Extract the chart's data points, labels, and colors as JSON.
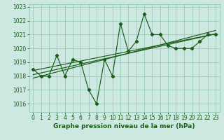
{
  "background_color": "#cce8e0",
  "grid_color": "#99ccbb",
  "line_color": "#1a5c1a",
  "xlim": [
    -0.5,
    23.5
  ],
  "ylim": [
    1015.4,
    1023.2
  ],
  "yticks": [
    1016,
    1017,
    1018,
    1019,
    1020,
    1021,
    1022,
    1023
  ],
  "xticks": [
    0,
    1,
    2,
    3,
    4,
    5,
    6,
    7,
    8,
    9,
    10,
    11,
    12,
    13,
    14,
    15,
    16,
    17,
    18,
    19,
    20,
    21,
    22,
    23
  ],
  "xlabel": "Graphe pression niveau de la mer (hPa)",
  "main_data": [
    1018.5,
    1018.0,
    1018.0,
    1019.5,
    1018.0,
    1019.2,
    1019.0,
    1017.0,
    1016.0,
    1019.2,
    1018.0,
    1021.8,
    1019.8,
    1020.5,
    1022.5,
    1021.0,
    1021.0,
    1020.2,
    1020.0,
    1020.0,
    1020.0,
    1020.5,
    1021.0,
    1021.0
  ],
  "trend_lines": [
    [
      1018.4,
      1021.05
    ],
    [
      1018.1,
      1021.05
    ],
    [
      1017.85,
      1021.3
    ]
  ],
  "xlabel_fontsize": 6.5,
  "tick_fontsize": 5.5
}
